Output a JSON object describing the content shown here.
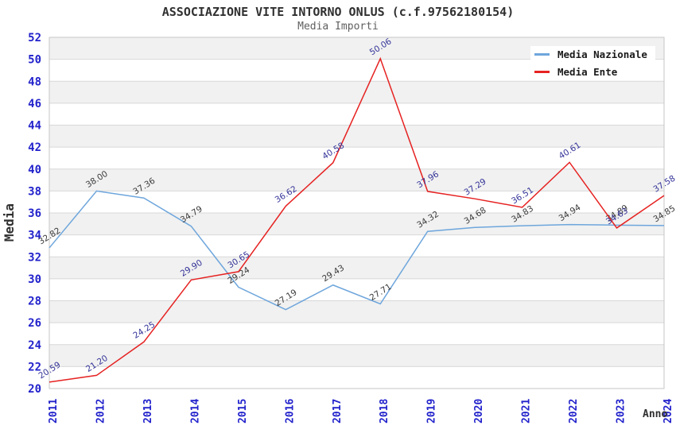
{
  "chart_data": {
    "type": "line",
    "title": "ASSOCIAZIONE VITE INTORNO ONLUS (c.f.97562180154)",
    "subtitle": "Media Importi",
    "xlabel": "Anno",
    "ylabel": "Media",
    "categories": [
      "2011",
      "2012",
      "2013",
      "2014",
      "2015",
      "2016",
      "2017",
      "2018",
      "2019",
      "2020",
      "2021",
      "2022",
      "2023",
      "2024"
    ],
    "series": [
      {
        "name": "Media Nazionale",
        "color": "#6ea6dc",
        "label_color": "#3a3a3a",
        "values": [
          32.82,
          38.0,
          37.36,
          34.79,
          29.24,
          27.19,
          29.43,
          27.71,
          34.32,
          34.68,
          34.83,
          34.94,
          34.89,
          34.85
        ]
      },
      {
        "name": "Media Ente",
        "color": "#e62222",
        "label_color": "#333399",
        "values": [
          20.59,
          21.2,
          24.25,
          29.9,
          30.65,
          36.62,
          40.58,
          50.06,
          37.96,
          37.29,
          36.51,
          40.61,
          34.63,
          37.58
        ]
      }
    ],
    "ylim": [
      20,
      52
    ],
    "ytick_step": 2,
    "grid": true,
    "legend_position": "top-right",
    "colors": {
      "axis_tick": "#2222cc",
      "band": "#f1f1f1",
      "grid": "#d8d8d8",
      "border": "#c6c6c6",
      "title": "#303030",
      "subtitle": "#606060",
      "axis_label": "#303030"
    }
  }
}
